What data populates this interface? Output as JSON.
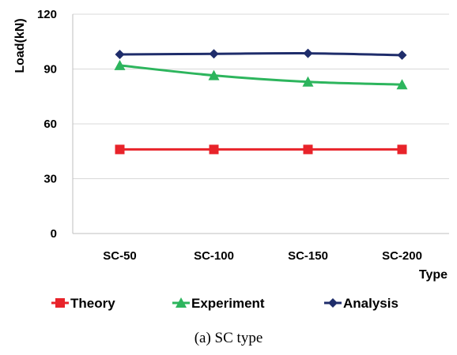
{
  "chart_data": {
    "type": "line",
    "categories": [
      "SC-50",
      "SC-100",
      "SC-150",
      "SC-200"
    ],
    "series": [
      {
        "name": "Theory",
        "color": "#e8232a",
        "marker": "square",
        "smooth": false,
        "values": [
          46,
          46,
          46,
          46
        ]
      },
      {
        "name": "Experiment",
        "color": "#2db55d",
        "marker": "triangle",
        "smooth": true,
        "values": [
          92,
          86.5,
          83,
          81.5
        ]
      },
      {
        "name": "Analysis",
        "color": "#1f2d6b",
        "marker": "diamond",
        "smooth": true,
        "values": [
          98,
          98.3,
          98.6,
          97.6
        ]
      }
    ],
    "xlabel": "Type",
    "ylabel": "Load(kN)",
    "ylim": [
      0,
      120
    ],
    "yticks": [
      "0",
      "30",
      "60",
      "90",
      "120"
    ],
    "grid": true,
    "legend_position": "bottom"
  },
  "caption": "(a) SC type"
}
